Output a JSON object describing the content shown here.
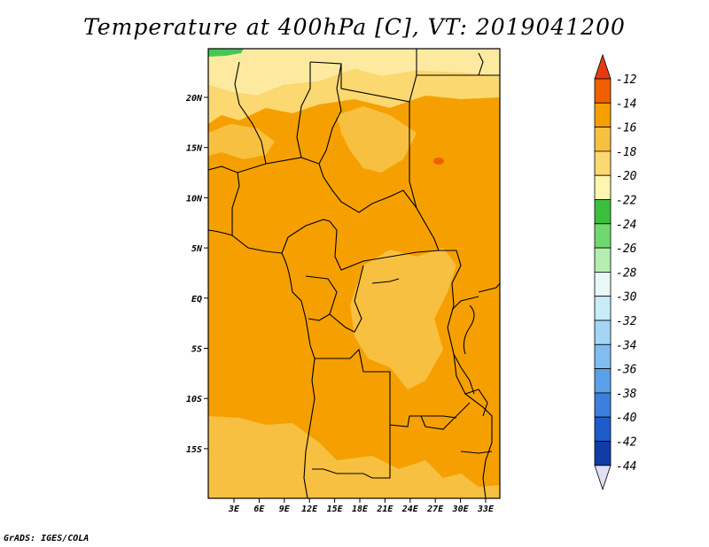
{
  "title": "Temperature at 400hPa [C], VT: 2019041200",
  "footer": "GrADS: IGES/COLA",
  "map": {
    "variable": "Temperature at 400hPa",
    "units": "C",
    "valid_time": "2019041200",
    "lon_ticks": [
      "3E",
      "6E",
      "9E",
      "12E",
      "15E",
      "18E",
      "21E",
      "24E",
      "27E",
      "30E",
      "33E"
    ],
    "lat_ticks": [
      "20N",
      "15N",
      "10N",
      "5N",
      "EQ",
      "5S",
      "10S",
      "15S"
    ],
    "dominant_color": "#f5a000",
    "regions": [
      {
        "name": "warm-core",
        "color": "#f06000"
      },
      {
        "name": "main",
        "color": "#f5a000"
      },
      {
        "name": "moderate",
        "color": "#f8c040"
      },
      {
        "name": "cool",
        "color": "#fbd870"
      },
      {
        "name": "cooler",
        "color": "#fdeaa0"
      },
      {
        "name": "coldest-corner",
        "color": "#44c855"
      }
    ]
  },
  "colorbar": {
    "labels": [
      "-12",
      "-14",
      "-16",
      "-18",
      "-20",
      "-22",
      "-24",
      "-26",
      "-28",
      "-30",
      "-32",
      "-34",
      "-36",
      "-38",
      "-40",
      "-42",
      "-44"
    ],
    "colors": [
      "#e83a10",
      "#f06000",
      "#f5a000",
      "#f8c040",
      "#fbd870",
      "#fdf5b0",
      "#3cbf3c",
      "#6fd86f",
      "#b5eeb0",
      "#e8f8f5",
      "#c8ecf8",
      "#a5d5f5",
      "#80bdf0",
      "#5aa0e8",
      "#3a80dc",
      "#1e5ccc",
      "#103ca8",
      "#0a1e7e",
      "#e0e0f5"
    ]
  }
}
